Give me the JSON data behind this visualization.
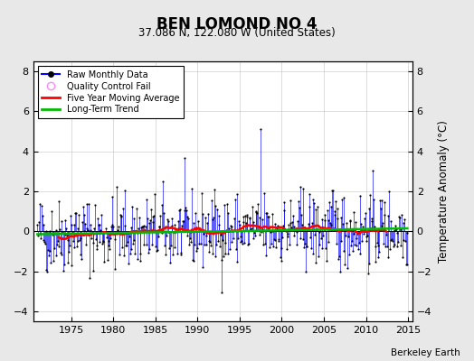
{
  "title": "BEN LOMOND NO 4",
  "subtitle": "37.086 N, 122.080 W (United States)",
  "ylabel": "Temperature Anomaly (°C)",
  "attribution": "Berkeley Earth",
  "xlim": [
    1970.5,
    2015.5
  ],
  "ylim": [
    -4.5,
    8.5
  ],
  "yticks": [
    -4,
    -2,
    0,
    2,
    4,
    6,
    8
  ],
  "xticks": [
    1975,
    1980,
    1985,
    1990,
    1995,
    2000,
    2005,
    2010,
    2015
  ],
  "seed": 42,
  "start_year": 1971.0,
  "end_year": 2014.9,
  "n_months": 528,
  "blue_color": "#0000ff",
  "red_color": "#ff0000",
  "green_color": "#00bb00",
  "bg_color": "#e8e8e8",
  "plot_bg": "#ffffff"
}
